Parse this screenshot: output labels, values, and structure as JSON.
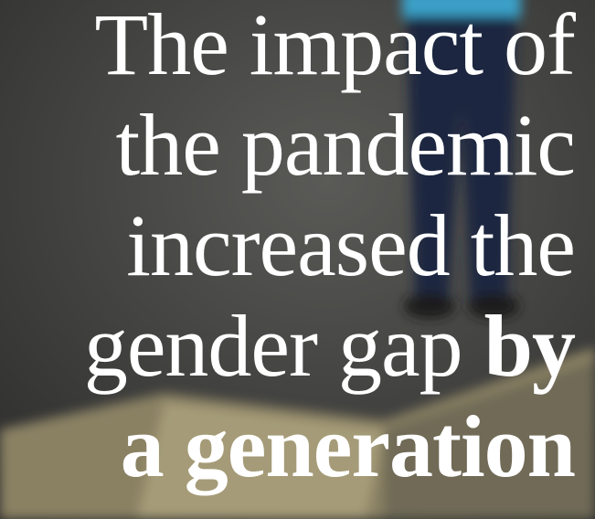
{
  "headline": {
    "lines": [
      {
        "text": "The impact of"
      },
      {
        "text": "the pandemic"
      },
      {
        "text": "increased the"
      },
      {
        "text": "gender gap",
        "bold": "by"
      },
      {
        "bold": "a generation"
      }
    ]
  }
}
